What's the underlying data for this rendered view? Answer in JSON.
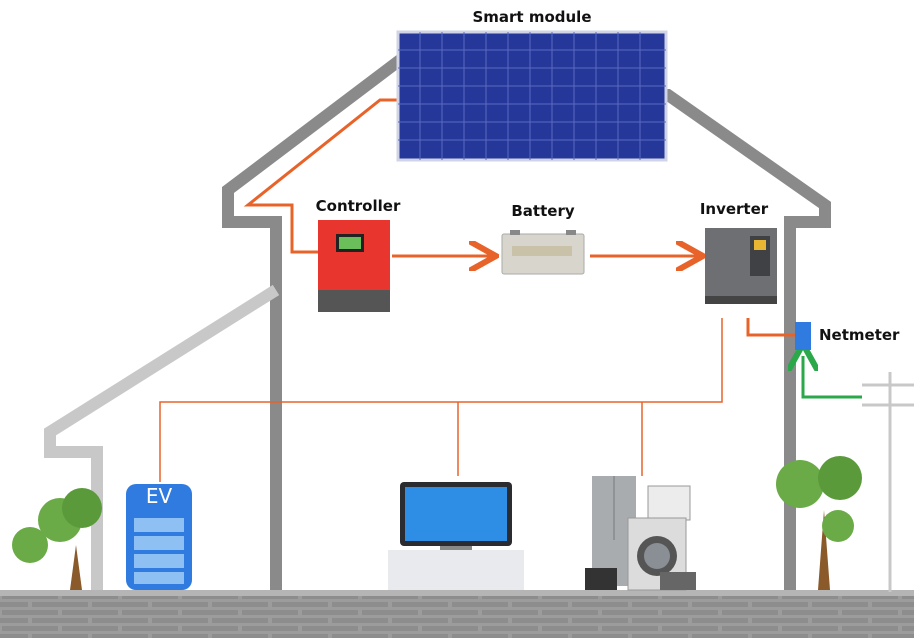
{
  "nodes": [
    {
      "label": "Smart module"
    },
    {
      "label": "Controller"
    },
    {
      "label": "Battery"
    },
    {
      "label": "Inverter"
    },
    {
      "label": "Netmeter"
    },
    {
      "label": "EV"
    }
  ]
}
